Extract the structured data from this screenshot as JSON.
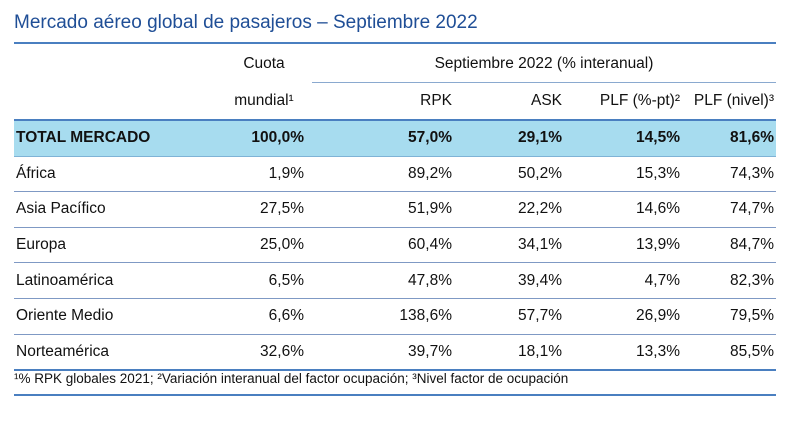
{
  "title": "Mercado aéreo global de pasajeros – Septiembre 2022",
  "header": {
    "quota_line1": "Cuota",
    "quota_line2": "mundial¹",
    "period": "Septiembre 2022 (% interanual)",
    "cols": [
      "RPK",
      "ASK",
      "PLF (%-pt)²",
      "PLF (nivel)³"
    ]
  },
  "total": {
    "region": "TOTAL MERCADO",
    "cuota": "100,0%",
    "rpk": "57,0%",
    "ask": "29,1%",
    "plf_pt": "14,5%",
    "plf_nivel": "81,6%"
  },
  "rows": [
    {
      "region": "África",
      "cuota": "1,9%",
      "rpk": "89,2%",
      "ask": "50,2%",
      "plf_pt": "15,3%",
      "plf_nivel": "74,3%"
    },
    {
      "region": "Asia Pacífico",
      "cuota": "27,5%",
      "rpk": "51,9%",
      "ask": "22,2%",
      "plf_pt": "14,6%",
      "plf_nivel": "74,7%"
    },
    {
      "region": "Europa",
      "cuota": "25,0%",
      "rpk": "60,4%",
      "ask": "34,1%",
      "plf_pt": "13,9%",
      "plf_nivel": "84,7%"
    },
    {
      "region": "Latinoamérica",
      "cuota": "6,5%",
      "rpk": "47,8%",
      "ask": "39,4%",
      "plf_pt": "4,7%",
      "plf_nivel": "82,3%"
    },
    {
      "region": "Oriente Medio",
      "cuota": "6,6%",
      "rpk": "138,6%",
      "ask": "57,7%",
      "plf_pt": "26,9%",
      "plf_nivel": "79,5%"
    },
    {
      "region": "Norteamérica",
      "cuota": "32,6%",
      "rpk": "39,7%",
      "ask": "18,1%",
      "plf_pt": "13,3%",
      "plf_nivel": "85,5%"
    }
  ],
  "footnote": "¹% RPK globales 2021; ²Variación interanual del factor ocupación; ³Nivel factor de ocupación"
}
